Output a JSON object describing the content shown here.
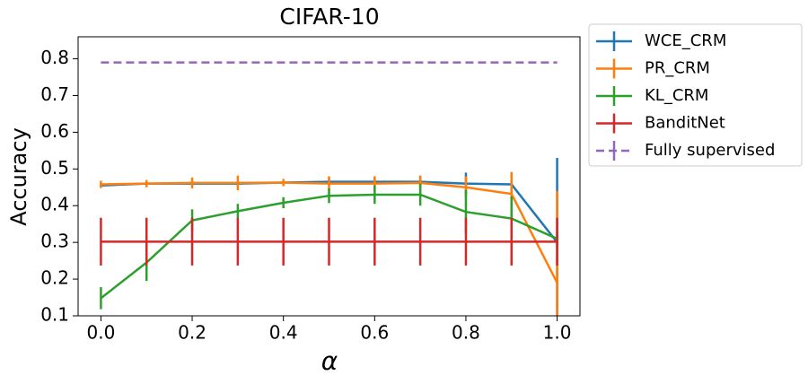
{
  "chart_data": {
    "type": "line",
    "title": "CIFAR-10",
    "x_label": "α",
    "y_label": "Accuracy",
    "x": [
      0.0,
      0.1,
      0.2,
      0.3,
      0.4,
      0.5,
      0.6,
      0.7,
      0.8,
      0.9,
      1.0
    ],
    "xlim": [
      -0.05,
      1.05
    ],
    "ylim": [
      0.1,
      0.86
    ],
    "xticks": [
      {
        "value": 0,
        "label": "0.0"
      },
      0.2,
      0.4,
      0.6,
      0.8,
      {
        "value": 1,
        "label": "1.0"
      }
    ],
    "yticks": [
      0.1,
      0.2,
      0.3,
      0.4,
      0.5,
      0.6,
      0.7,
      0.8
    ],
    "legend": "outside-right",
    "series": [
      {
        "name": "WCE_CRM",
        "color": "#1f77b4",
        "linestyle": "solid",
        "values": [
          0.455,
          0.46,
          0.46,
          0.46,
          0.463,
          0.465,
          0.465,
          0.465,
          0.46,
          0.458,
          0.3
        ],
        "errors": [
          0.005,
          0.005,
          0.005,
          0.005,
          0.005,
          0.01,
          0.015,
          0.015,
          0.03,
          0.03,
          0.23
        ]
      },
      {
        "name": "PR_CRM",
        "color": "#ff7f0e",
        "linestyle": "solid",
        "values": [
          0.458,
          0.46,
          0.462,
          0.462,
          0.463,
          0.46,
          0.46,
          0.462,
          0.45,
          0.432,
          0.19
        ],
        "errors": [
          0.01,
          0.01,
          0.015,
          0.02,
          0.01,
          0.02,
          0.02,
          0.02,
          0.03,
          0.06,
          0.25
        ]
      },
      {
        "name": "KL_CRM",
        "color": "#2ca02c",
        "linestyle": "solid",
        "values": [
          0.148,
          0.245,
          0.36,
          0.385,
          0.408,
          0.427,
          0.43,
          0.43,
          0.383,
          0.365,
          0.31
        ],
        "errors": [
          0.03,
          0.05,
          0.03,
          0.02,
          0.015,
          0.02,
          0.025,
          0.03,
          0.06,
          0.06,
          0.02
        ]
      },
      {
        "name": "BanditNet",
        "color": "#d62728",
        "linestyle": "solid",
        "values": [
          0.302,
          0.302,
          0.302,
          0.302,
          0.302,
          0.302,
          0.302,
          0.302,
          0.302,
          0.302,
          0.302
        ],
        "errors": [
          0.065,
          0.065,
          0.065,
          0.065,
          0.065,
          0.065,
          0.065,
          0.065,
          0.065,
          0.065,
          0.065
        ]
      },
      {
        "name": "Fully supervised",
        "color": "#9467bd",
        "linestyle": "dashed",
        "values": [
          0.79,
          0.79,
          0.79,
          0.79,
          0.79,
          0.79,
          0.79,
          0.79,
          0.79,
          0.79,
          0.79
        ]
      }
    ]
  }
}
